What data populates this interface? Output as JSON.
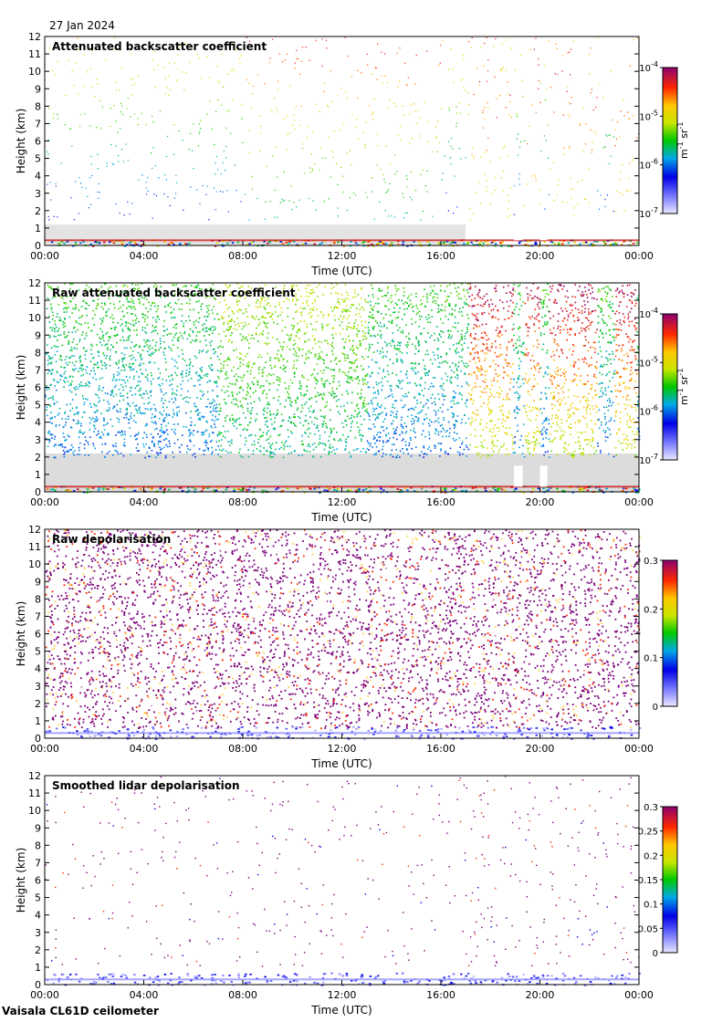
{
  "date_label": "27 Jan 2024",
  "footer_label": "Vaisala CL61D ceilometer",
  "chart_data": [
    {
      "type": "heatmap",
      "title": "Attenuated backscatter coefficient",
      "xlabel": "Time (UTC)",
      "ylabel": "Height (km)",
      "x_ticks": [
        "00:00",
        "04:00",
        "08:00",
        "12:00",
        "16:00",
        "20:00",
        "00:00"
      ],
      "y_ticks": [
        "0",
        "1",
        "2",
        "3",
        "4",
        "5",
        "6",
        "7",
        "8",
        "9",
        "10",
        "11",
        "12"
      ],
      "ylim": [
        0,
        12
      ],
      "colorbar": {
        "scale": "log",
        "tick_bases": [
          "10",
          "10",
          "10",
          "10"
        ],
        "tick_exps": [
          "-7",
          "-6",
          "-5",
          "-4"
        ],
        "unit_m": "m",
        "unit_m_exp": "-1",
        "unit_sr": "sr",
        "unit_sr_exp": "-1"
      }
    },
    {
      "type": "heatmap",
      "title": "Raw attenuated backscatter coefficient",
      "xlabel": "Time (UTC)",
      "ylabel": "Height (km)",
      "x_ticks": [
        "00:00",
        "04:00",
        "08:00",
        "12:00",
        "16:00",
        "20:00",
        "00:00"
      ],
      "y_ticks": [
        "0",
        "1",
        "2",
        "3",
        "4",
        "5",
        "6",
        "7",
        "8",
        "9",
        "10",
        "11",
        "12"
      ],
      "ylim": [
        0,
        12
      ],
      "colorbar": {
        "scale": "log",
        "tick_bases": [
          "10",
          "10",
          "10",
          "10"
        ],
        "tick_exps": [
          "-7",
          "-6",
          "-5",
          "-4"
        ],
        "unit_m": "m",
        "unit_m_exp": "-1",
        "unit_sr": "sr",
        "unit_sr_exp": "-1"
      }
    },
    {
      "type": "heatmap",
      "title": "Raw depolarisation",
      "xlabel": "Time (UTC)",
      "ylabel": "Height (km)",
      "x_ticks": [
        "00:00",
        "04:00",
        "08:00",
        "12:00",
        "16:00",
        "20:00",
        "00:00"
      ],
      "y_ticks": [
        "0",
        "1",
        "2",
        "3",
        "4",
        "5",
        "6",
        "7",
        "8",
        "9",
        "10",
        "11",
        "12"
      ],
      "ylim": [
        0,
        12
      ],
      "colorbar": {
        "scale": "linear",
        "ticks": [
          "0",
          "0.1",
          "0.2",
          "0.3"
        ],
        "range": [
          0,
          0.3
        ]
      }
    },
    {
      "type": "heatmap",
      "title": "Smoothed lidar depolarisation",
      "xlabel": "Time (UTC)",
      "ylabel": "Height (km)",
      "x_ticks": [
        "00:00",
        "04:00",
        "08:00",
        "12:00",
        "16:00",
        "20:00",
        "00:00"
      ],
      "y_ticks": [
        "0",
        "1",
        "2",
        "3",
        "4",
        "5",
        "6",
        "7",
        "8",
        "9",
        "10",
        "11",
        "12"
      ],
      "ylim": [
        0,
        12
      ],
      "colorbar": {
        "scale": "linear",
        "ticks": [
          "0",
          "0.05",
          "0.1",
          "0.15",
          "0.2",
          "0.25",
          "0.3"
        ],
        "range": [
          0,
          0.3
        ]
      }
    }
  ]
}
